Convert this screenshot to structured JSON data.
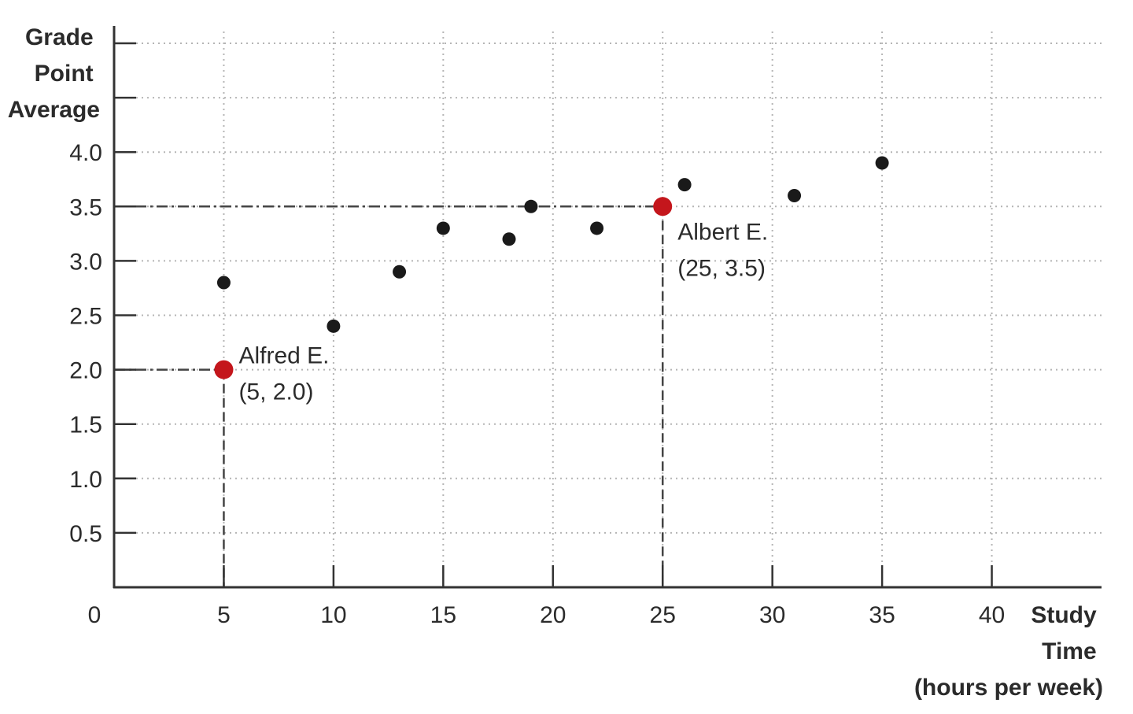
{
  "chart_data": {
    "type": "scatter",
    "ylabel_lines": [
      "Grade",
      "Point",
      "Average"
    ],
    "xlabel_lines": [
      "Study",
      "Time",
      "(hours per week)"
    ],
    "origin_label": "0",
    "xlim": [
      0,
      45
    ],
    "ylim": [
      0,
      5.0
    ],
    "x_tick_values": [
      5,
      10,
      15,
      20,
      25,
      30,
      35,
      40
    ],
    "x_tick_labels": [
      "5",
      "10",
      "15",
      "20",
      "25",
      "30",
      "35",
      "40"
    ],
    "y_tick_values": [
      0.5,
      1.0,
      1.5,
      2.0,
      2.5,
      3.0,
      3.5,
      4.0,
      4.5,
      5.0
    ],
    "y_tick_labels": [
      "0.5",
      "1.0",
      "1.5",
      "2.0",
      "2.5",
      "3.0",
      "3.5",
      "4.0",
      "",
      ""
    ],
    "grid": true,
    "points": [
      {
        "x": 5,
        "y": 2.8
      },
      {
        "x": 10,
        "y": 2.4
      },
      {
        "x": 13,
        "y": 2.9
      },
      {
        "x": 15,
        "y": 3.3
      },
      {
        "x": 18,
        "y": 3.2
      },
      {
        "x": 19,
        "y": 3.5
      },
      {
        "x": 22,
        "y": 3.3
      },
      {
        "x": 26,
        "y": 3.7
      },
      {
        "x": 31,
        "y": 3.6
      },
      {
        "x": 35,
        "y": 3.9
      }
    ],
    "highlights": [
      {
        "x": 5,
        "y": 2.0,
        "name": "Alfred E.",
        "coords": "(5, 2.0)"
      },
      {
        "x": 25,
        "y": 3.5,
        "name": "Albert E.",
        "coords": "(25, 3.5)"
      }
    ],
    "colors": {
      "point": "#1a1a1a",
      "highlight": "#c4161c",
      "axis": "#333333",
      "grid": "#b5b5b5",
      "guide": "#444444"
    }
  }
}
